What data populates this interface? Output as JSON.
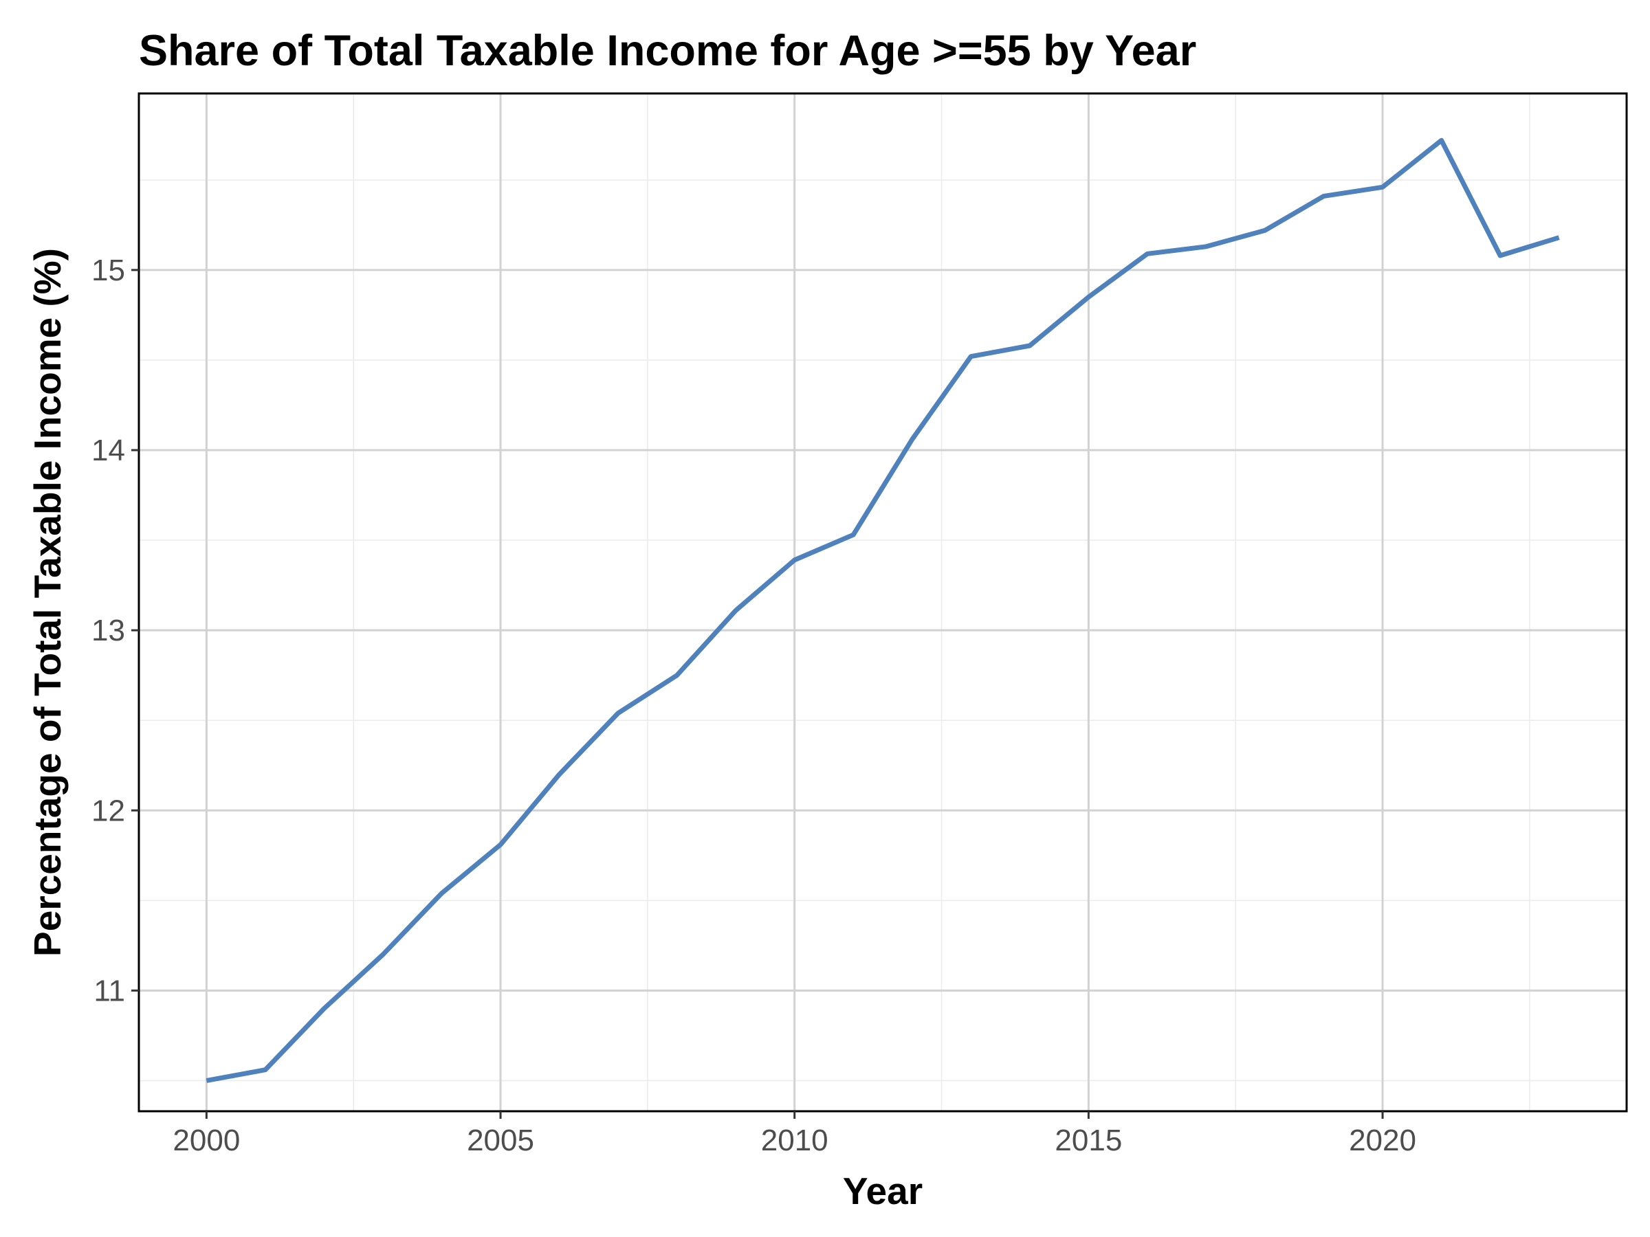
{
  "chart_data": {
    "type": "line",
    "title": "Share of Total Taxable Income for Age >=55 by Year",
    "xlabel": "Year",
    "ylabel": "Percentage of Total Taxable Income (%)",
    "x": [
      2000,
      2001,
      2002,
      2003,
      2004,
      2005,
      2006,
      2007,
      2008,
      2009,
      2010,
      2011,
      2012,
      2013,
      2014,
      2015,
      2016,
      2017,
      2018,
      2019,
      2020,
      2021,
      2022,
      2023
    ],
    "series": [
      {
        "values": [
          10.5,
          10.56,
          10.9,
          11.2,
          11.54,
          11.81,
          12.2,
          12.54,
          12.75,
          13.11,
          13.39,
          13.53,
          14.06,
          14.52,
          14.58,
          14.85,
          15.09,
          15.13,
          15.22,
          15.41,
          15.46,
          15.72,
          15.08,
          15.18
        ],
        "color": "#4f81bd"
      }
    ],
    "xlim": [
      1998.85,
      2024.15
    ],
    "ylim": [
      10.33,
      15.98
    ],
    "x_ticks": [
      "2000",
      "2005",
      "2010",
      "2015",
      "2020"
    ],
    "y_ticks": [
      "11",
      "12",
      "13",
      "14",
      "15"
    ],
    "grid": true,
    "legend": "none"
  }
}
